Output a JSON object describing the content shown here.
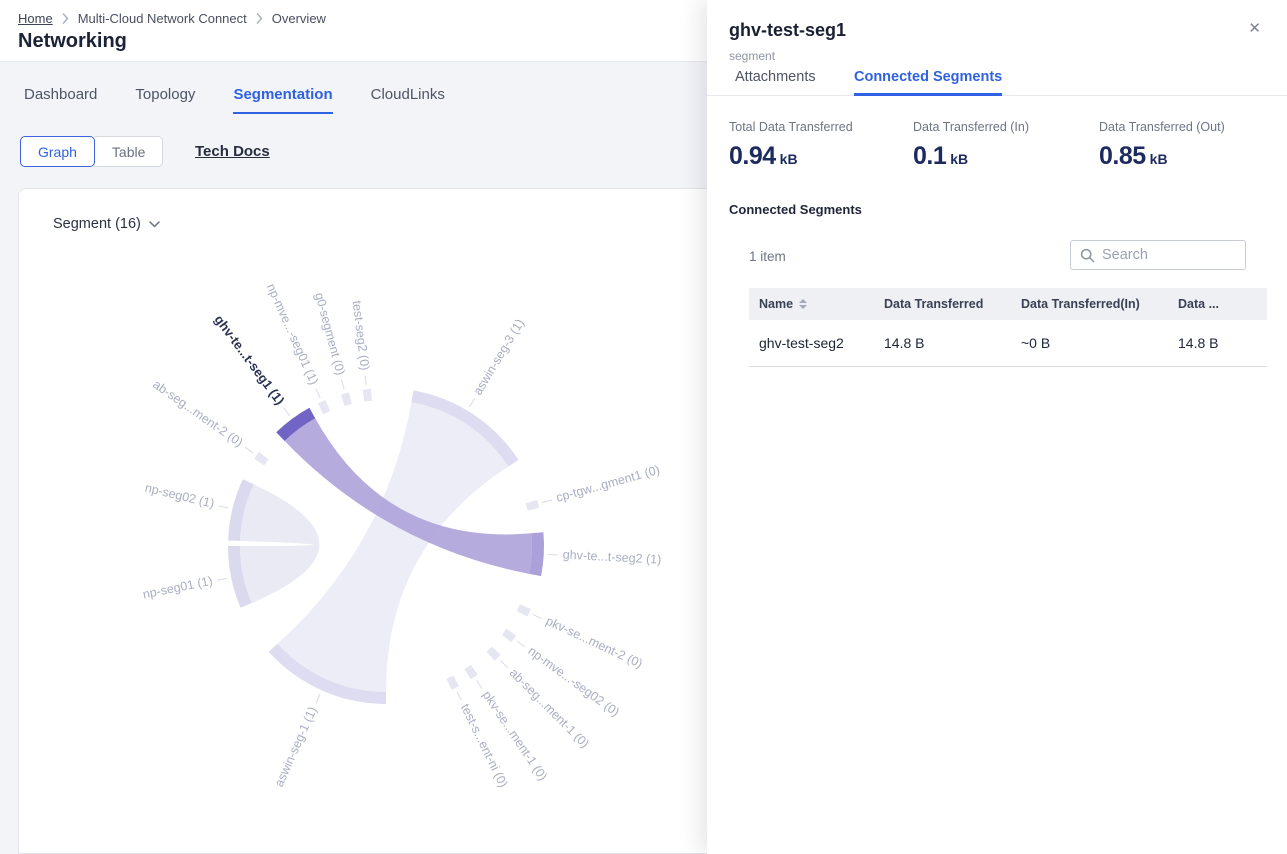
{
  "breadcrumb": {
    "items": [
      "Home",
      "Multi-Cloud Network Connect",
      "Overview"
    ]
  },
  "page": {
    "title": "Networking"
  },
  "nav_tabs": [
    {
      "label": "Dashboard"
    },
    {
      "label": "Topology"
    },
    {
      "label": "Segmentation",
      "active": true
    },
    {
      "label": "CloudLinks"
    }
  ],
  "view_toggle": {
    "graph": "Graph",
    "table": "Table",
    "tech_docs": "Tech Docs"
  },
  "chart_data": {
    "type": "chord",
    "title": "Segment (16)",
    "legend_position": "none",
    "label_color": "#a9aec2",
    "highlight_label_color": "#2a3154",
    "leader_color": "#d9dbe8",
    "segments": [
      {
        "label": "aswin-seg-3 (1)",
        "start": 10,
        "end": 57,
        "label_angle": 31,
        "arc_color": "#dddcf0"
      },
      {
        "label": "cp-tgw...gment1 (0)",
        "start": 73,
        "end": 76,
        "label_angle": 74.5,
        "arc_color": "#e6e6f3"
      },
      {
        "label": "ghv-te...t-seg2 (1)",
        "start": 85,
        "end": 101,
        "label_angle": 93,
        "arc_color": "#aba0d8"
      },
      {
        "label": "pkv-se...ment-2 (0)",
        "start": 113.5,
        "end": 116.5,
        "label_angle": 115,
        "arc_color": "#e6e6f3"
      },
      {
        "label": "np-mve...-seg02 (0)",
        "start": 124.5,
        "end": 127.5,
        "label_angle": 126,
        "arc_color": "#e6e6f3"
      },
      {
        "label": "ab-seg...ment-1 (0)",
        "start": 133.5,
        "end": 136.5,
        "label_angle": 135,
        "arc_color": "#e6e6f3"
      },
      {
        "label": "pkv-se...ment-1 (0)",
        "start": 144.5,
        "end": 147.5,
        "label_angle": 146,
        "arc_color": "#e6e6f3"
      },
      {
        "label": "test-s...ent-ni (0)",
        "start": 152.5,
        "end": 155.5,
        "label_angle": 154,
        "arc_color": "#e6e6f3"
      },
      {
        "label": "aswin-seg-1 (1)",
        "start": 180,
        "end": 228,
        "label_angle": 204,
        "arc_color": "#dddcf0"
      },
      {
        "label": "np-seg01 (1)",
        "start": 247,
        "end": 270,
        "label_angle": 258.5,
        "arc_color": "#dad9ee"
      },
      {
        "label": "np-seg02 (1)",
        "start": 272,
        "end": 295,
        "label_angle": 283.5,
        "arc_color": "#dad9ee"
      },
      {
        "label": "ab-seg...ment-2 (0)",
        "start": 303.5,
        "end": 306.5,
        "label_angle": 305,
        "arc_color": "#e6e6f3"
      },
      {
        "label": "ghv-te...t-seg1 (1)",
        "start": 316,
        "end": 331,
        "label_angle": 323.5,
        "arc_color": "#7164c5",
        "highlighted": true
      },
      {
        "label": "np-mve...-seg01 (1)",
        "start": 334.5,
        "end": 337.5,
        "label_angle": 336,
        "arc_color": "#e6e6f3"
      },
      {
        "label": "g0-segment (0)",
        "start": 343.5,
        "end": 346.5,
        "label_angle": 345,
        "arc_color": "#e6e6f3"
      },
      {
        "label": "test-seg2 (0)",
        "start": 351.5,
        "end": 354.5,
        "label_angle": 353,
        "arc_color": "#e6e6f3"
      }
    ],
    "ribbons": [
      {
        "source": "aswin-seg-3 (1)",
        "target": "aswin-seg-1 (1)",
        "color": "#ecedf6",
        "opacity": 1
      },
      {
        "source": "np-seg02 (1)",
        "target": "np-seg01 (1)",
        "color": "#e9eaf4",
        "opacity": 1
      },
      {
        "source": "ghv-te...t-seg1 (1)",
        "target": "ghv-te...t-seg2 (1)",
        "color": "#afa4da",
        "opacity": 0.92,
        "highlight": true
      }
    ]
  },
  "panel": {
    "title": "ghv-test-seg1",
    "subtitle": "segment",
    "close_icon": "✕",
    "tabs": [
      {
        "label": "Attachments"
      },
      {
        "label": "Connected Segments",
        "active": true
      }
    ],
    "stats": [
      {
        "label": "Total Data Transferred",
        "value": "0.94",
        "unit": "kB"
      },
      {
        "label": "Data Transferred (In)",
        "value": "0.1",
        "unit": "kB"
      },
      {
        "label": "Data Transferred (Out)",
        "value": "0.85",
        "unit": "kB"
      }
    ],
    "section_title": "Connected Segments",
    "items_count": "1 item",
    "search": {
      "placeholder": "Search"
    },
    "table": {
      "columns": [
        "Name",
        "Data Transferred",
        "Data Transferred(In)",
        "Data ..."
      ],
      "rows": [
        [
          "ghv-test-seg2",
          "14.8 B",
          "~0 B",
          "14.8 B"
        ]
      ]
    }
  },
  "colors": {
    "accent_blue": "#2f62e2",
    "highlight_purple": "#7164c5",
    "ribbon_purple": "#afa4da",
    "navy_value": "#1d2a5e"
  }
}
